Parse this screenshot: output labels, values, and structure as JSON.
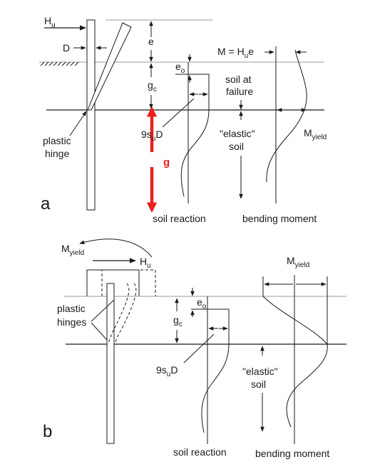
{
  "panel_a": {
    "letter": "a",
    "hu_main": "H",
    "hu_sub": "u",
    "d_label": "D",
    "e_label": "e",
    "m_main": "M = H",
    "m_sub": "u",
    "m_tail": "e",
    "eo_main": "e",
    "eo_sub": "o",
    "gc_main": "g",
    "gc_sub": "c",
    "soil_failure_1": "soil at",
    "soil_failure_2": "failure",
    "plastic_hinge_1": "plastic",
    "plastic_hinge_2": "hinge",
    "su_main": "9s",
    "su_sub": "u",
    "su_tail": "D",
    "elastic_1": "\"elastic\"",
    "elastic_2": "soil",
    "myield_main": "M",
    "myield_sub": "yield",
    "g_red": "g",
    "soil_reaction": "soil reaction",
    "bending_moment": "bending moment"
  },
  "panel_b": {
    "letter": "b",
    "myield_left_main": "M",
    "myield_left_sub": "yield",
    "hu_main": "H",
    "hu_sub": "u",
    "myield_right_main": "M",
    "myield_right_sub": "yield",
    "eo_main": "e",
    "eo_sub": "o",
    "gc_main": "g",
    "gc_sub": "c",
    "plastic_hinges_1": "plastic",
    "plastic_hinges_2": "hinges",
    "su_main": "9s",
    "su_sub": "u",
    "su_tail": "D",
    "elastic_1": "\"elastic\"",
    "elastic_2": "soil",
    "soil_reaction": "soil reaction",
    "bending_moment": "bending moment"
  },
  "colors": {
    "line": "#1a1a1a",
    "grey_line": "#9a9a9a",
    "accent_red": "#e8201e"
  }
}
